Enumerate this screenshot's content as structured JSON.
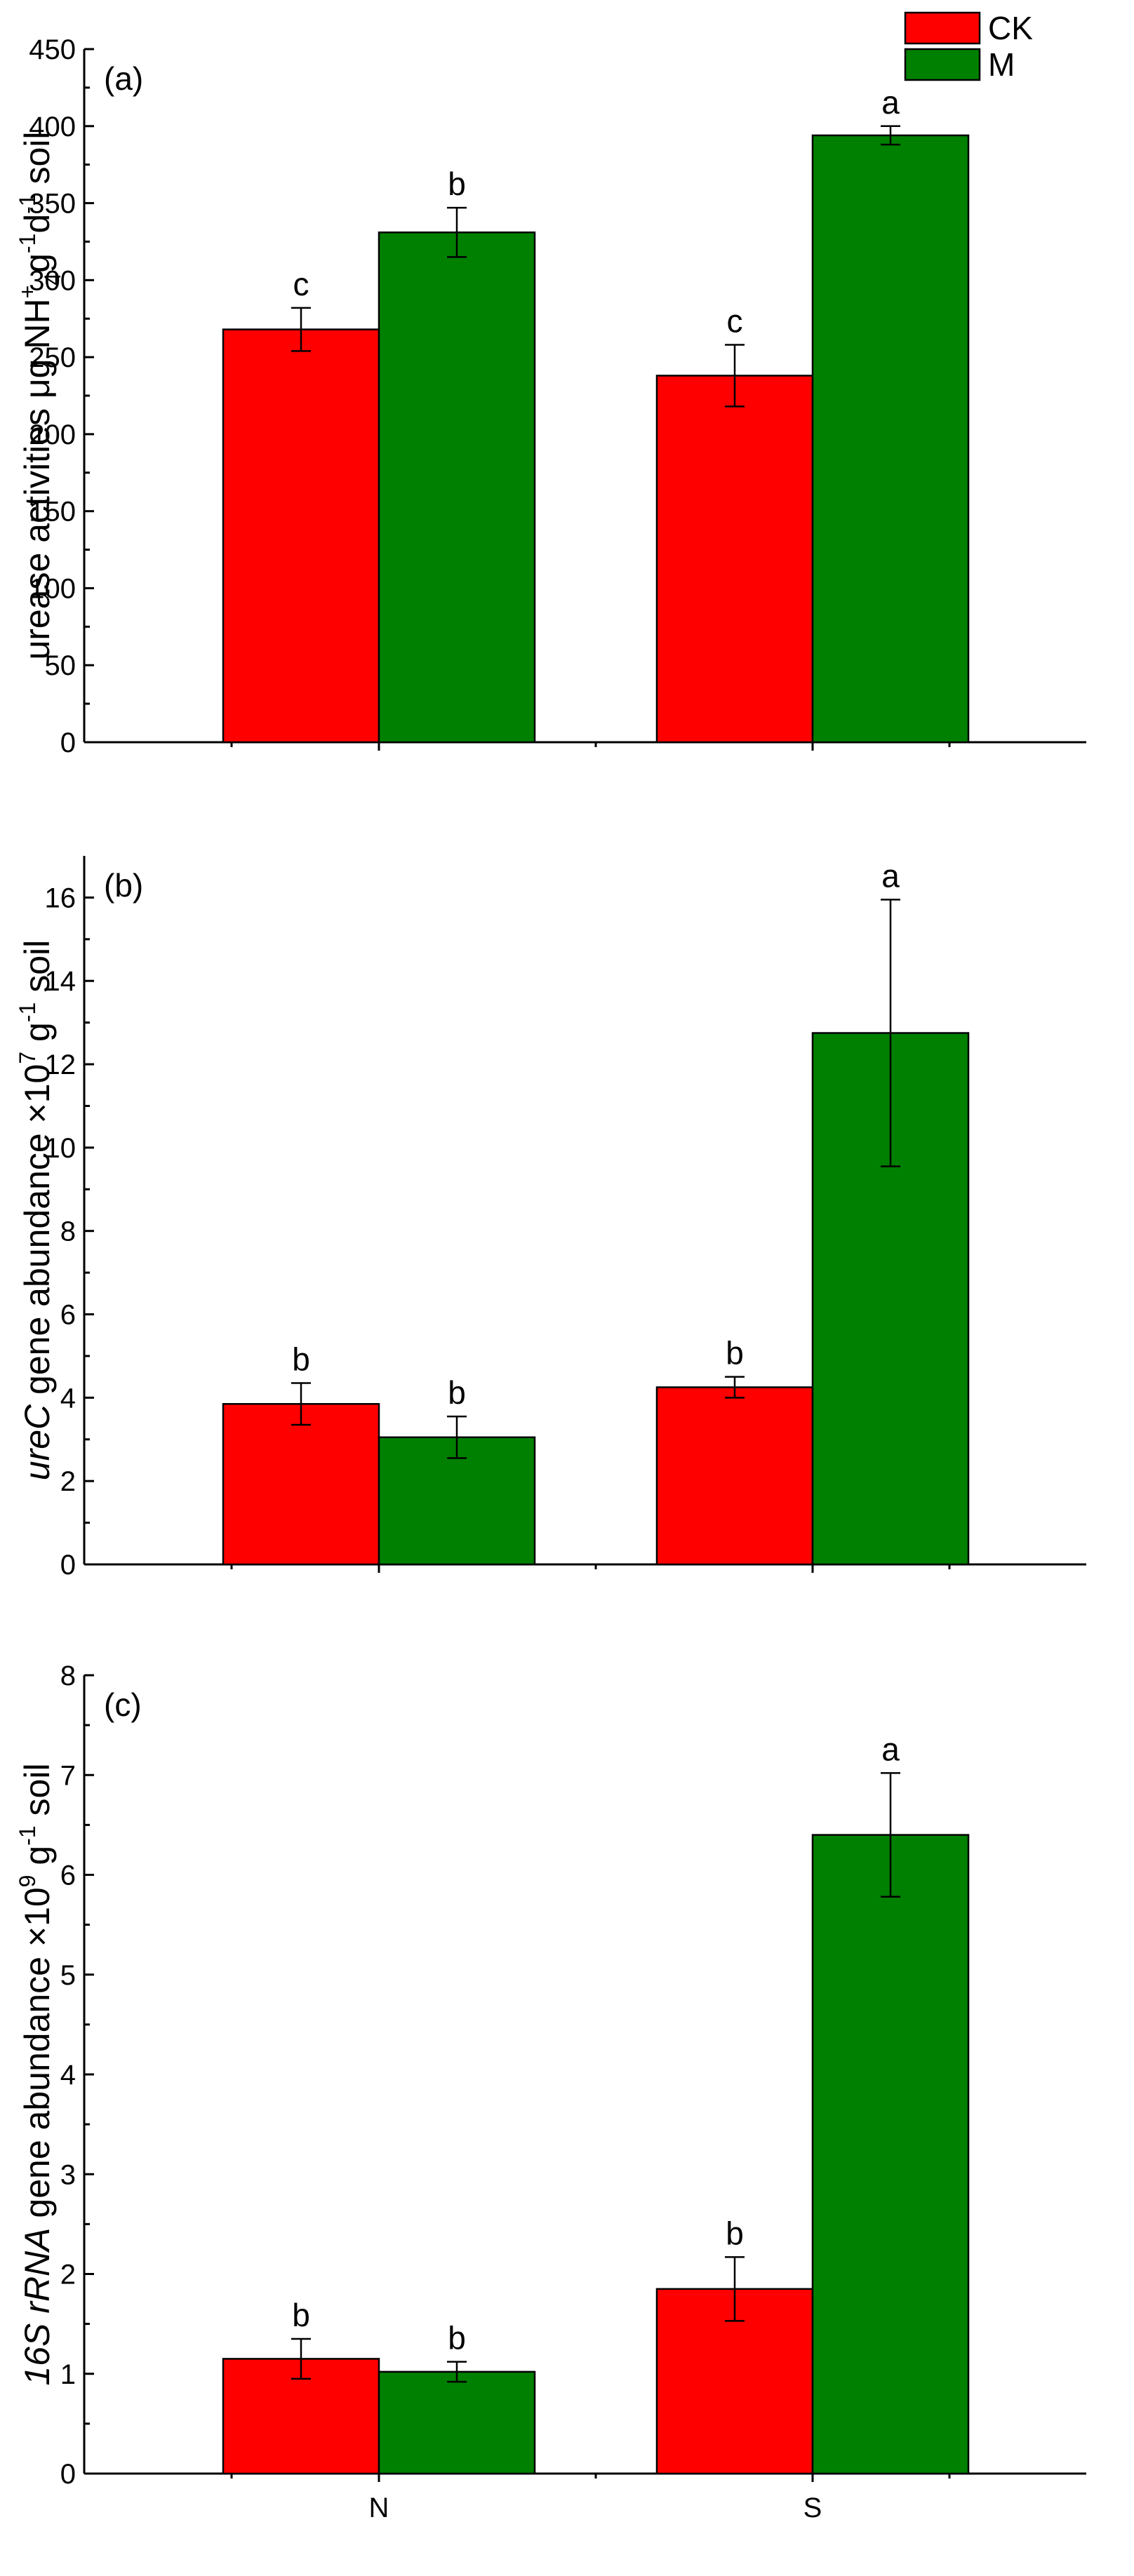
{
  "colors": {
    "CK": "#ff0000",
    "M": "#008000",
    "axis": "#000000"
  },
  "legend": [
    {
      "name": "CK",
      "color": "#ff0000"
    },
    {
      "name": "M",
      "color": "#008000"
    }
  ],
  "chart_data": [
    {
      "type": "bar",
      "panel_label": "(a)",
      "categories": [
        "N",
        "S"
      ],
      "show_category_labels": false,
      "ylabel": {
        "pre": "urease activities μg NH",
        "sup1": "+",
        "sub1": "4",
        "mid1": "g",
        "sup2": "-1",
        "mid2": "d",
        "sup3": "-1",
        "post": " soil"
      },
      "ylim": [
        0,
        450
      ],
      "yticks": [
        0,
        50,
        100,
        150,
        200,
        250,
        300,
        350,
        400,
        450
      ],
      "series": [
        {
          "name": "CK",
          "values": [
            268,
            238
          ],
          "errors": [
            14,
            20
          ],
          "letters": [
            "c",
            "c"
          ]
        },
        {
          "name": "M",
          "values": [
            331,
            394
          ],
          "errors": [
            16,
            6
          ],
          "letters": [
            "b",
            "a"
          ]
        }
      ]
    },
    {
      "type": "bar",
      "panel_label": "(b)",
      "categories": [
        "N",
        "S"
      ],
      "show_category_labels": false,
      "ylabel": {
        "italic": "ureC",
        "text": " gene abundance ×10",
        "sup1": "7",
        "mid": " g",
        "sup2": "-1",
        "post": " soil"
      },
      "ylim": [
        0,
        17
      ],
      "yticks": [
        0,
        2,
        4,
        6,
        8,
        10,
        12,
        14,
        16
      ],
      "series": [
        {
          "name": "CK",
          "values": [
            3.85,
            4.25
          ],
          "errors": [
            0.5,
            0.25
          ],
          "letters": [
            "b",
            "b"
          ]
        },
        {
          "name": "M",
          "values": [
            3.05,
            12.75
          ],
          "errors": [
            0.5,
            3.2
          ],
          "letters": [
            "b",
            "a"
          ]
        }
      ]
    },
    {
      "type": "bar",
      "panel_label": "(c)",
      "categories": [
        "N",
        "S"
      ],
      "show_category_labels": true,
      "ylabel": {
        "italic": "16S rRNA",
        "text": " gene abundance ×10",
        "sup1": "9",
        "mid": " g",
        "sup2": "-1",
        "post": " soil"
      },
      "ylim": [
        0,
        8
      ],
      "yticks": [
        0,
        1,
        2,
        3,
        4,
        5,
        6,
        7,
        8
      ],
      "series": [
        {
          "name": "CK",
          "values": [
            1.15,
            1.85
          ],
          "errors": [
            0.2,
            0.32
          ],
          "letters": [
            "b",
            "b"
          ]
        },
        {
          "name": "M",
          "values": [
            1.02,
            6.4
          ],
          "errors": [
            0.1,
            0.62
          ],
          "letters": [
            "b",
            "a"
          ]
        }
      ]
    }
  ]
}
